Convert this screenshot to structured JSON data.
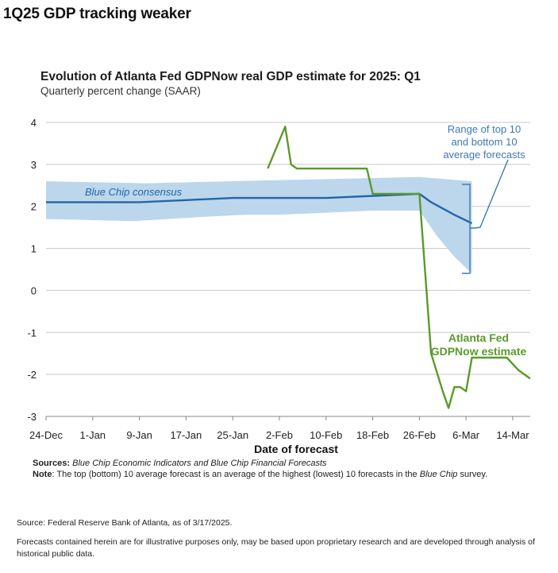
{
  "page": {
    "headline": "1Q25 GDP tracking weaker",
    "sources_label": "Sources:",
    "sources_text": "Blue Chip Economic Indicators and Blue Chip Financial Forecasts",
    "note_label": "Note",
    "note_text_1": ": The top (bottom) 10 average forecast is an average of the highest (lowest) 10 forecasts in the ",
    "note_text_italic": "Blue Chip",
    "note_text_2": " survey.",
    "source_footer": "Source: Federal Reserve Bank of Atlanta, as of 3/17/2025.",
    "disclaimer": "Forecasts contained herein are for illustrative purposes only, may be based upon proprietary research and are developed through analysis of historical public data."
  },
  "colors": {
    "consensus_line": "#2366a8",
    "range_band": "#bcd7ec",
    "gdpnow_line": "#5a9a2a",
    "annotation_blue": "#3d79b5",
    "grid": "#c8c8c8"
  },
  "chart_data": {
    "type": "line",
    "title": "Evolution of Atlanta Fed GDPNow real GDP estimate for 2025: Q1",
    "subtitle": "Quarterly percent change (SAAR)",
    "xlabel": "Date of forecast",
    "ylabel": "",
    "x_type": "date",
    "x_range": [
      "2024-12-24",
      "2025-03-17"
    ],
    "x_ticks": [
      "2024-12-24",
      "2025-01-01",
      "2025-01-09",
      "2025-01-17",
      "2025-01-25",
      "2025-02-02",
      "2025-02-10",
      "2025-02-18",
      "2025-02-26",
      "2025-03-06",
      "2025-03-14"
    ],
    "x_tick_labels": [
      "24-Dec",
      "1-Jan",
      "9-Jan",
      "17-Jan",
      "25-Jan",
      "2-Feb",
      "10-Feb",
      "18-Feb",
      "26-Feb",
      "6-Mar",
      "14-Mar"
    ],
    "ylim": [
      -3,
      4
    ],
    "y_ticks": [
      4,
      3,
      2,
      1,
      0,
      -1,
      -2,
      -3
    ],
    "grid": true,
    "series": [
      {
        "name": "Blue Chip consensus",
        "kind": "line",
        "points": [
          [
            "2024-12-24",
            2.1
          ],
          [
            "2025-01-01",
            2.1
          ],
          [
            "2025-01-09",
            2.1
          ],
          [
            "2025-01-17",
            2.15
          ],
          [
            "2025-01-25",
            2.2
          ],
          [
            "2025-02-02",
            2.2
          ],
          [
            "2025-02-10",
            2.2
          ],
          [
            "2025-02-18",
            2.25
          ],
          [
            "2025-02-26",
            2.3
          ],
          [
            "2025-02-28",
            2.1
          ],
          [
            "2025-03-04",
            1.8
          ],
          [
            "2025-03-07",
            1.6
          ]
        ]
      },
      {
        "name": "Range of top 10 and bottom 10 average forecasts",
        "kind": "band",
        "upper": [
          [
            "2024-12-24",
            2.6
          ],
          [
            "2025-01-10",
            2.55
          ],
          [
            "2025-01-25",
            2.6
          ],
          [
            "2025-02-10",
            2.65
          ],
          [
            "2025-02-26",
            2.7
          ],
          [
            "2025-03-07",
            2.6
          ]
        ],
        "lower": [
          [
            "2024-12-24",
            1.7
          ],
          [
            "2025-01-08",
            1.65
          ],
          [
            "2025-01-20",
            1.75
          ],
          [
            "2025-01-27",
            1.8
          ],
          [
            "2025-02-02",
            1.8
          ],
          [
            "2025-02-10",
            1.85
          ],
          [
            "2025-02-18",
            1.9
          ],
          [
            "2025-02-26",
            1.9
          ],
          [
            "2025-03-01",
            1.3
          ],
          [
            "2025-03-04",
            0.8
          ],
          [
            "2025-03-07",
            0.4
          ]
        ]
      },
      {
        "name": "Atlanta Fed GDPNow estimate",
        "kind": "line",
        "points": [
          [
            "2025-01-31",
            2.9
          ],
          [
            "2025-02-03",
            3.9
          ],
          [
            "2025-02-04",
            3.0
          ],
          [
            "2025-02-05",
            2.9
          ],
          [
            "2025-02-17",
            2.9
          ],
          [
            "2025-02-18",
            2.3
          ],
          [
            "2025-02-26",
            2.3
          ],
          [
            "2025-02-28",
            -1.5
          ],
          [
            "2025-03-02",
            -2.4
          ],
          [
            "2025-03-03",
            -2.8
          ],
          [
            "2025-03-04",
            -2.3
          ],
          [
            "2025-03-05",
            -2.3
          ],
          [
            "2025-03-06",
            -2.4
          ],
          [
            "2025-03-07",
            -1.6
          ],
          [
            "2025-03-12",
            -1.6
          ],
          [
            "2025-03-13",
            -1.6
          ],
          [
            "2025-03-15",
            -1.9
          ],
          [
            "2025-03-17",
            -2.1
          ]
        ]
      }
    ],
    "annotations": [
      {
        "text_lines": [
          "Blue Chip consensus"
        ],
        "color": "consensus"
      },
      {
        "text_lines": [
          "Range of top 10",
          "and bottom 10",
          "average forecasts"
        ],
        "color": "blue"
      },
      {
        "text_lines": [
          "Atlanta Fed",
          "GDPNow estimate"
        ],
        "color": "green"
      }
    ]
  }
}
